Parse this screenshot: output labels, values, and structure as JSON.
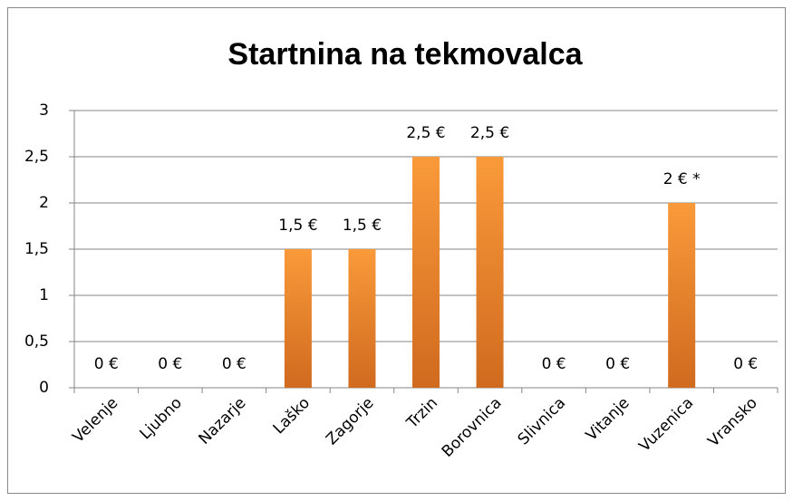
{
  "chart_data": {
    "type": "bar",
    "title": "Startnina na tekmovalca",
    "categories": [
      "Velenje",
      "Ljubno",
      "Nazarje",
      "Laško",
      "Zagorje",
      "Trzin",
      "Borovnica",
      "Slivnica",
      "Vitanje",
      "Vuzenica",
      "Vransko"
    ],
    "values": [
      0,
      0,
      0,
      1.5,
      1.5,
      2.5,
      2.5,
      0,
      0,
      2,
      0
    ],
    "value_labels": [
      "0 €",
      "0 €",
      "0 €",
      "1,5 €",
      "1,5 €",
      "2,5 €",
      "2,5 €",
      "0 €",
      "0 €",
      "2 € *",
      "0 €"
    ],
    "color": "#f99a3a",
    "ylim": [
      0,
      3
    ],
    "yticks": [
      0,
      {
        "value": 0.5,
        "label": "0,5"
      },
      1,
      {
        "value": 1.5,
        "label": "1,5"
      },
      2,
      {
        "value": 2.5,
        "label": "2,5"
      },
      3
    ],
    "grid": true
  }
}
